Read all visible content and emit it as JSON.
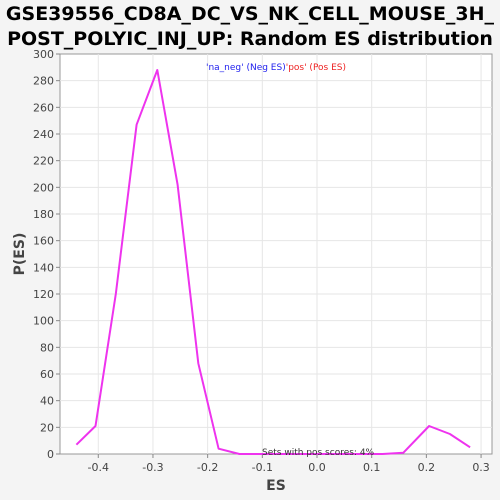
{
  "chart_data": {
    "type": "line",
    "title_lines": [
      "GSE39556_CD8A_DC_VS_NK_CELL_MOUSE_3H_",
      "POST_POLYIC_INJ_UP: Random ES distribution"
    ],
    "xlabel": "ES",
    "ylabel": "P(ES)",
    "xlim": [
      -0.47,
      0.32
    ],
    "ylim": [
      0,
      300
    ],
    "x_ticks": [
      -0.4,
      -0.3,
      -0.2,
      -0.1,
      0.0,
      0.1,
      0.2,
      0.3
    ],
    "x_tick_labels": [
      "-0.4",
      "-0.3",
      "-0.2",
      "-0.1",
      "0.0",
      "0.1",
      "0.2",
      "0.3"
    ],
    "y_ticks": [
      0,
      20,
      40,
      60,
      80,
      100,
      120,
      140,
      160,
      180,
      200,
      220,
      240,
      260,
      280,
      300
    ],
    "y_tick_labels": [
      "0",
      "20",
      "40",
      "60",
      "80",
      "100",
      "120",
      "140",
      "160",
      "180",
      "200",
      "220",
      "240",
      "260",
      "280",
      "300"
    ],
    "grid": true,
    "legend": {
      "placement": "top-center",
      "entries": [
        {
          "label": "'na_neg' (Neg ES)",
          "color": "#2222ee"
        },
        {
          "label": "'pos' (Pos ES)",
          "color": "#ee2222"
        }
      ]
    },
    "annotation": "Sets with pos scores: 4%",
    "series": [
      {
        "color": "#ee33ee",
        "x": [
          -0.44,
          -0.405,
          -0.368,
          -0.33,
          -0.292,
          -0.255,
          -0.217,
          -0.18,
          -0.142,
          -0.105,
          -0.067,
          -0.03,
          0.008,
          0.045,
          0.083,
          0.12,
          0.158,
          0.205,
          0.243,
          0.28
        ],
        "y": [
          7,
          21,
          120,
          247,
          288,
          202,
          68,
          4,
          0,
          0,
          0,
          0,
          0,
          0,
          0,
          0,
          1,
          21,
          15,
          5
        ]
      }
    ]
  }
}
